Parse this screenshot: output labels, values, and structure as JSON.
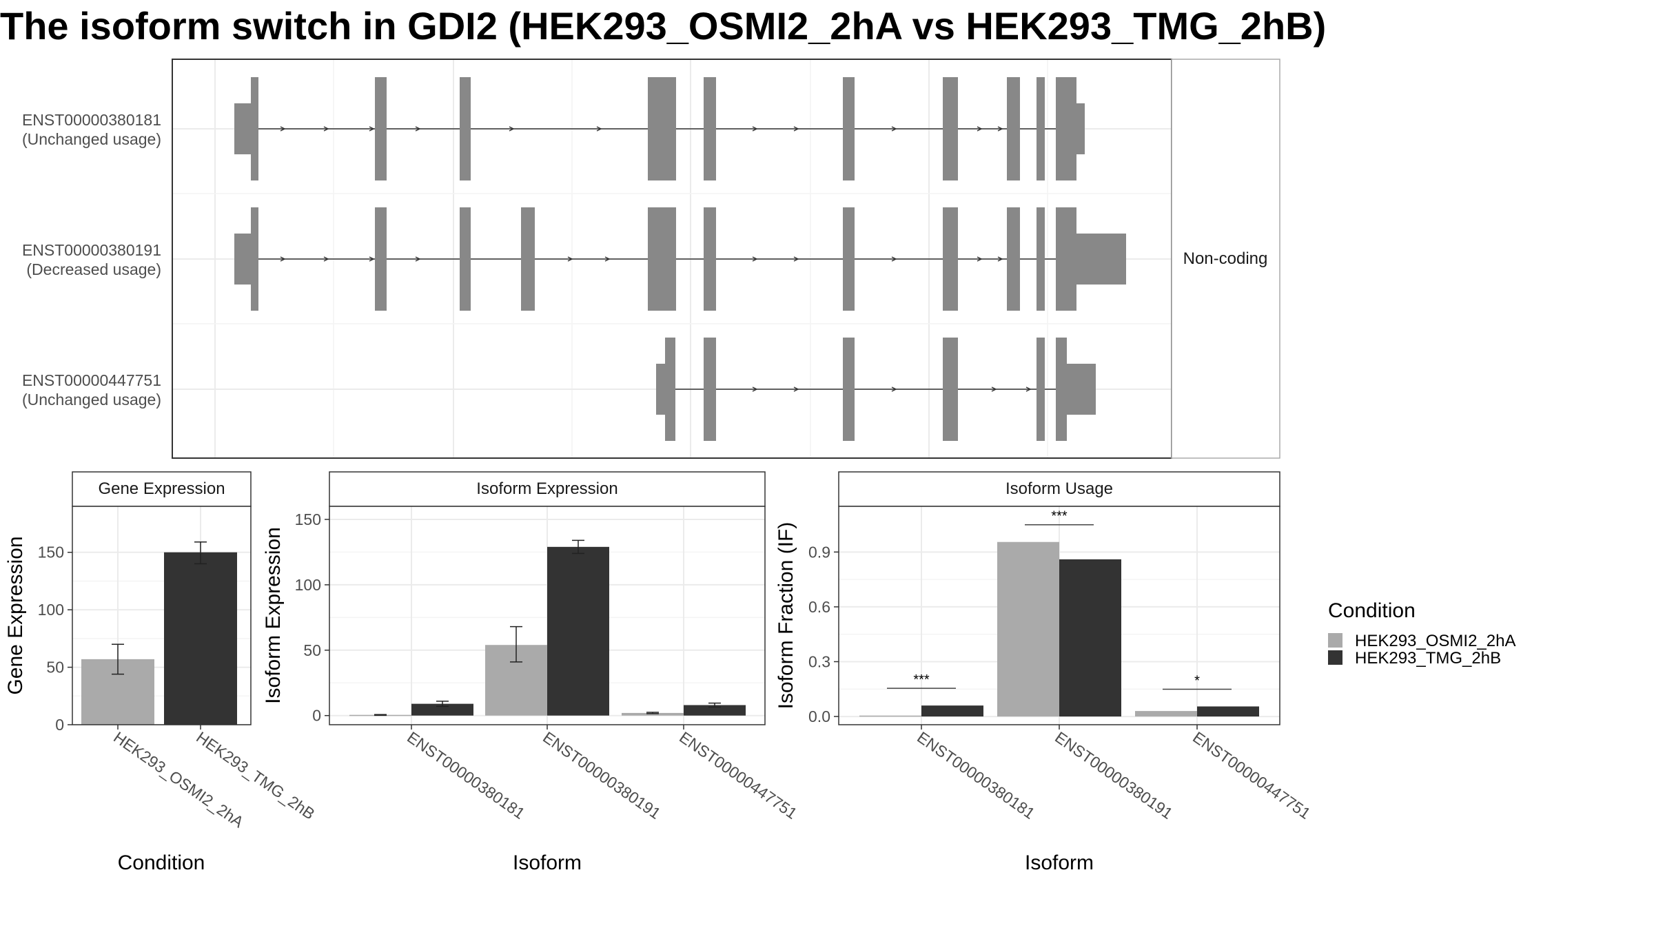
{
  "title": "The isoform switch in GDI2 (HEK293_OSMI2_2hA vs HEK293_TMG_2hB)",
  "transcript_panel": {
    "strip_label": "Non-coding",
    "rows": [
      {
        "id": "ENST00000380181",
        "label": "ENST00000380181",
        "sublabel": "(Unchanged usage)"
      },
      {
        "id": "ENST00000380191",
        "label": "ENST00000380191",
        "sublabel": "(Decreased usage)"
      },
      {
        "id": "ENST00000447751",
        "label": "ENST00000447751",
        "sublabel": "(Unchanged usage)"
      }
    ],
    "color": "#888888"
  },
  "colors": {
    "HEK293_OSMI2_2hA": "#aaaaaa",
    "HEK293_TMG_2hB": "#333333",
    "structure": "#888888"
  },
  "legend": {
    "title": "Condition",
    "items": [
      "HEK293_OSMI2_2hA",
      "HEK293_TMG_2hB"
    ]
  },
  "chart_data": [
    {
      "type": "bar",
      "panel": "gene",
      "title": "Gene Expression",
      "xlabel": "Condition",
      "ylabel": "Gene Expression",
      "categories": [
        "HEK293_OSMI2_2hA",
        "HEK293_TMG_2hB"
      ],
      "values": [
        57,
        150
      ],
      "error_low": [
        44,
        140
      ],
      "error_high": [
        70,
        159
      ],
      "ylim": [
        0,
        190
      ],
      "yticks": [
        0,
        50,
        100,
        150
      ],
      "grid": true
    },
    {
      "type": "bar",
      "panel": "isoform_expression",
      "title": "Isoform Expression",
      "xlabel": "Isoform",
      "ylabel": "Isoform Expression",
      "categories": [
        "ENST00000380181",
        "ENST00000380191",
        "ENST00000447751"
      ],
      "series": [
        {
          "name": "HEK293_OSMI2_2hA",
          "values": [
            0.5,
            54,
            2
          ],
          "error_low": [
            0.2,
            41,
            1.5
          ],
          "error_high": [
            0.8,
            68,
            2.5
          ]
        },
        {
          "name": "HEK293_TMG_2hB",
          "values": [
            9,
            129,
            8
          ],
          "error_low": [
            7,
            124,
            6.5
          ],
          "error_high": [
            11,
            134,
            9.5
          ]
        }
      ],
      "ylim": [
        -7,
        160
      ],
      "yticks": [
        0,
        50,
        100,
        150
      ],
      "grid": true
    },
    {
      "type": "bar",
      "panel": "isoform_usage",
      "title": "Isoform Usage",
      "xlabel": "Isoform",
      "ylabel": "Isoform Fraction (IF)",
      "categories": [
        "ENST00000380181",
        "ENST00000380191",
        "ENST00000447751"
      ],
      "series": [
        {
          "name": "HEK293_OSMI2_2hA",
          "values": [
            0.005,
            0.955,
            0.03
          ]
        },
        {
          "name": "HEK293_TMG_2hB",
          "values": [
            0.06,
            0.86,
            0.055
          ]
        }
      ],
      "significance": [
        "***",
        "***",
        "*"
      ],
      "ylim": [
        -0.045,
        1.15
      ],
      "yticks": [
        0.0,
        0.3,
        0.6,
        0.9
      ],
      "ytick_labels": [
        "0.0",
        "0.3",
        "0.6",
        "0.9"
      ],
      "grid": true
    }
  ]
}
